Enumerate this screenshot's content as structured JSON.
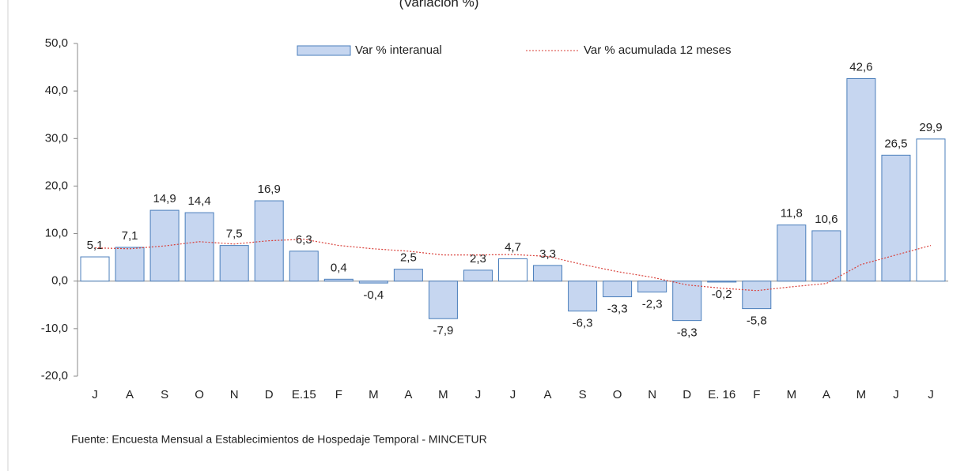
{
  "chart_data": {
    "type": "bar",
    "subtitle": "(Variación %)",
    "source": "Fuente: Encuesta Mensual a Establecimientos de Hospedaje Temporal - MINCETUR",
    "categories": [
      "J",
      "A",
      "S",
      "O",
      "N",
      "D",
      "E.15",
      "F",
      "M",
      "A",
      "M",
      "J",
      "J",
      "A",
      "S",
      "O",
      "N",
      "D",
      "E. 16",
      "F",
      "M",
      "A",
      "M",
      "J",
      "J"
    ],
    "series": [
      {
        "name": "Var % interanual",
        "type": "bar",
        "color": "#c6d6f0",
        "edge_color": "#4a7ebb",
        "colors": [
          "#ffffff",
          "#c6d6f0",
          "#c6d6f0",
          "#c6d6f0",
          "#c6d6f0",
          "#c6d6f0",
          "#c6d6f0",
          "#c6d6f0",
          "#c6d6f0",
          "#c6d6f0",
          "#c6d6f0",
          "#c6d6f0",
          "#ffffff",
          "#c6d6f0",
          "#c6d6f0",
          "#c6d6f0",
          "#c6d6f0",
          "#c6d6f0",
          "#c6d6f0",
          "#c6d6f0",
          "#c6d6f0",
          "#c6d6f0",
          "#c6d6f0",
          "#c6d6f0",
          "#ffffff"
        ],
        "values": [
          5.1,
          7.1,
          14.9,
          14.4,
          7.5,
          16.9,
          6.3,
          0.4,
          -0.4,
          2.5,
          -7.9,
          2.3,
          4.7,
          3.3,
          -6.3,
          -3.3,
          -2.3,
          -8.3,
          -0.2,
          -5.8,
          11.8,
          10.6,
          42.6,
          26.5,
          29.9
        ],
        "value_labels": [
          "5,1",
          "7,1",
          "14,9",
          "14,4",
          "7,5",
          "16,9",
          "6,3",
          "0,4",
          "-0,4",
          "2,5",
          "-7,9",
          "2,3",
          "4,7",
          "3,3",
          "-6,3",
          "-3,3",
          "-2,3",
          "-8,3",
          "-0,2",
          "-5,8",
          "11,8",
          "10,6",
          "42,6",
          "26,5",
          "29,9"
        ]
      },
      {
        "name": "Var % acumulada 12 meses",
        "type": "line",
        "color": "#d9403a",
        "dash": "dotted",
        "values": [
          7.0,
          6.8,
          7.4,
          8.3,
          7.8,
          8.5,
          8.8,
          7.5,
          6.8,
          6.3,
          5.5,
          5.5,
          5.6,
          5.2,
          3.5,
          2.0,
          0.8,
          -0.8,
          -1.5,
          -2.0,
          -1.2,
          -0.5,
          3.5,
          5.5,
          7.5
        ]
      }
    ],
    "ylim": [
      -20,
      50
    ],
    "yticks": [
      {
        "value": -20,
        "label": "-20,0"
      },
      {
        "value": -10,
        "label": "-10,0"
      },
      {
        "value": 0,
        "label": "0,0"
      },
      {
        "value": 10,
        "label": "10,0"
      },
      {
        "value": 20,
        "label": "20,0"
      },
      {
        "value": 30,
        "label": "30,0"
      },
      {
        "value": 40,
        "label": "40,0"
      },
      {
        "value": 50,
        "label": "50,0"
      }
    ],
    "legend": "top"
  }
}
